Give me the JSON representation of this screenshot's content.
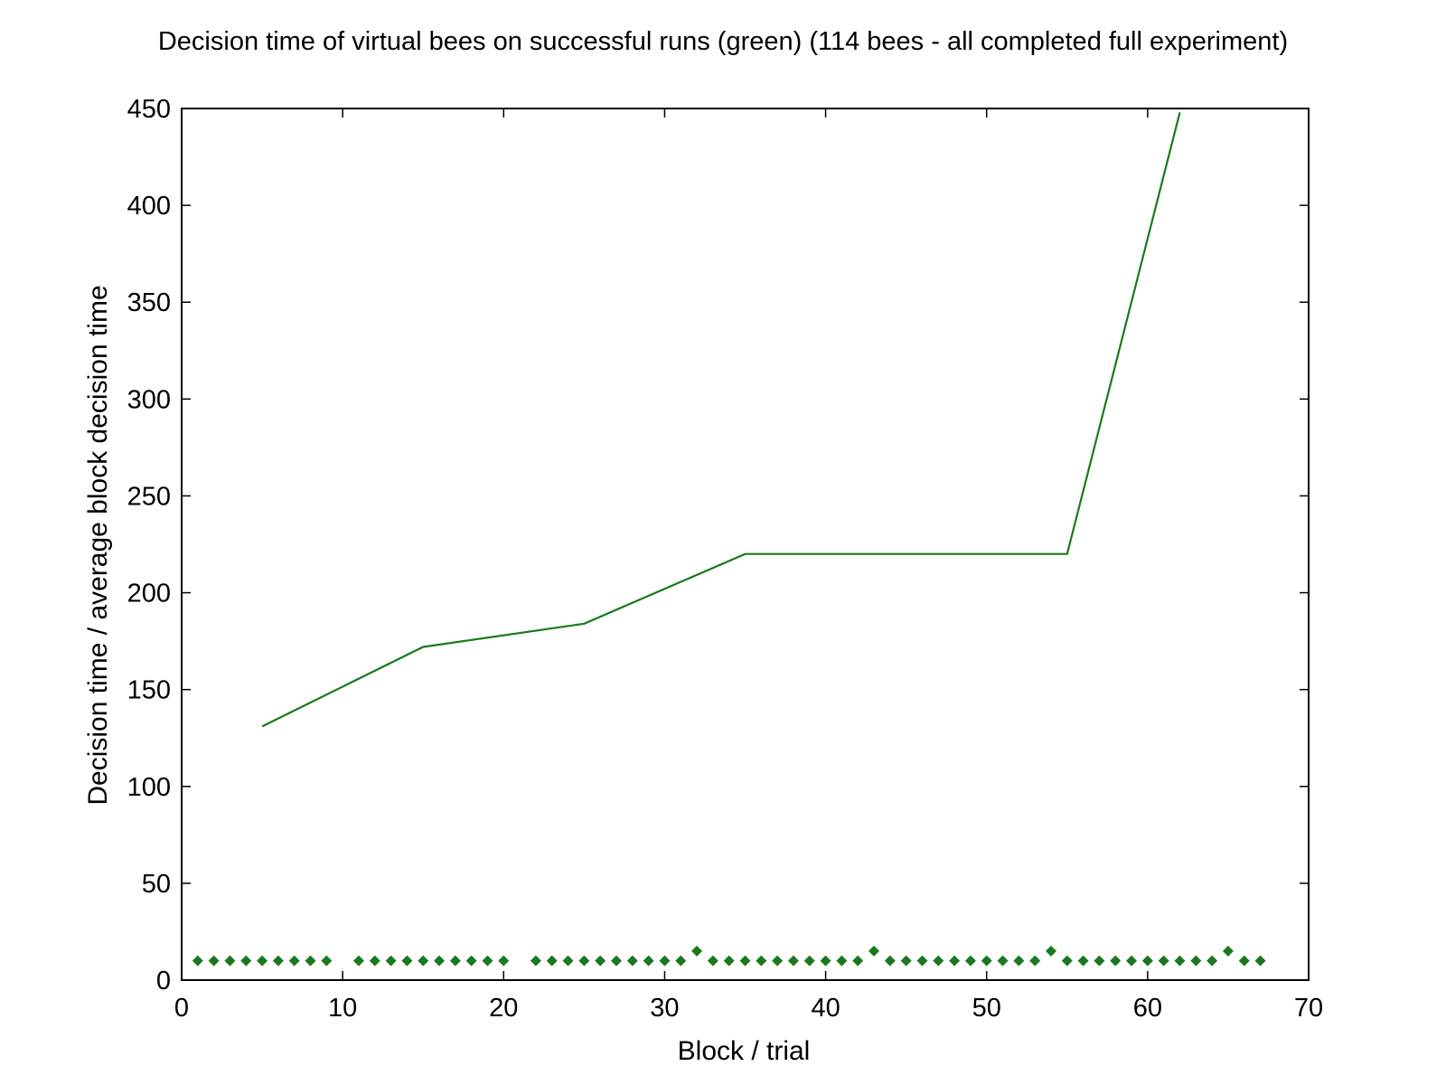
{
  "chart_data": {
    "type": "line",
    "title": "Decision time of virtual bees on successful runs (green) (114 bees - all completed full experiment)",
    "xlabel": "Block / trial",
    "ylabel": "Decision time / average block decision time",
    "xlim": [
      0,
      70
    ],
    "ylim": [
      0,
      450
    ],
    "xticks": [
      0,
      10,
      20,
      30,
      40,
      50,
      60,
      70
    ],
    "yticks": [
      0,
      50,
      100,
      150,
      200,
      250,
      300,
      350,
      400,
      450
    ],
    "grid": false,
    "legend": "none",
    "color": "#1a7a1a",
    "series": [
      {
        "type": "line",
        "x": [
          5,
          15,
          25,
          35,
          45,
          55,
          62
        ],
        "y": [
          131,
          172,
          184,
          220,
          220,
          220,
          448
        ]
      },
      {
        "type": "scatter",
        "marker": "diamond",
        "x": [
          1,
          2,
          3,
          4,
          5,
          6,
          7,
          8,
          9,
          11,
          12,
          13,
          14,
          15,
          16,
          17,
          18,
          19,
          20,
          22,
          23,
          24,
          25,
          26,
          27,
          28,
          29,
          30,
          31,
          32,
          33,
          34,
          35,
          36,
          37,
          38,
          39,
          40,
          41,
          42,
          43,
          44,
          45,
          46,
          47,
          48,
          49,
          50,
          51,
          52,
          53,
          54,
          55,
          56,
          57,
          58,
          59,
          60,
          61,
          62,
          63,
          64,
          65,
          66,
          67
        ],
        "y": [
          10,
          10,
          10,
          10,
          10,
          10,
          10,
          10,
          10,
          10,
          10,
          10,
          10,
          10,
          10,
          10,
          10,
          10,
          10,
          10,
          10,
          10,
          10,
          10,
          10,
          10,
          10,
          10,
          10,
          15,
          10,
          10,
          10,
          10,
          10,
          10,
          10,
          10,
          10,
          10,
          15,
          10,
          10,
          10,
          10,
          10,
          10,
          10,
          10,
          10,
          10,
          15,
          10,
          10,
          10,
          10,
          10,
          10,
          10,
          10,
          10,
          10,
          15,
          10,
          10
        ]
      }
    ]
  }
}
